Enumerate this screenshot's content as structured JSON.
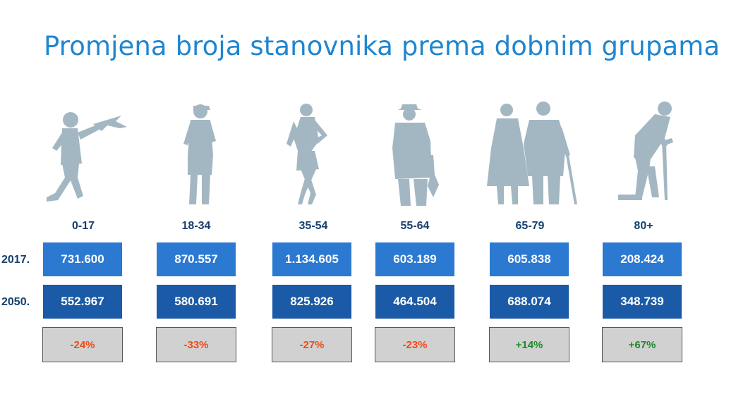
{
  "title": "Promjena broja stanovnika prema dobnim grupama",
  "row_labels": {
    "y2017": "2017.",
    "y2050": "2050."
  },
  "colors": {
    "title": "#1f86d0",
    "box_2017": "#2b79d1",
    "box_2050": "#1a5aa6",
    "change_bg": "#d1d1d1",
    "negative": "#f24a1a",
    "positive": "#1f8a2e",
    "silhouette": "#a3b7c3"
  },
  "groups": [
    {
      "label": "0-17",
      "icon": "child-with-plane-icon",
      "y2017": "731.600",
      "y2050": "552.967",
      "change": "-24%",
      "direction": "negative"
    },
    {
      "label": "18-34",
      "icon": "young-man-icon",
      "y2017": "870.557",
      "y2050": "580.691",
      "change": "-33%",
      "direction": "negative"
    },
    {
      "label": "35-54",
      "icon": "woman-icon",
      "y2017": "1.134.605",
      "y2050": "825.926",
      "change": "-27%",
      "direction": "negative"
    },
    {
      "label": "55-64",
      "icon": "man-with-umbrella-icon",
      "y2017": "603.189",
      "y2050": "464.504",
      "change": "-23%",
      "direction": "negative"
    },
    {
      "label": "65-79",
      "icon": "elderly-couple-icon",
      "y2017": "605.838",
      "y2050": "688.074",
      "change": "+14%",
      "direction": "positive"
    },
    {
      "label": "80+",
      "icon": "elderly-with-cane-icon",
      "y2017": "208.424",
      "y2050": "348.739",
      "change": "+67%",
      "direction": "positive"
    }
  ],
  "chart_data": {
    "type": "table",
    "title": "Promjena broja stanovnika prema dobnim grupama",
    "categories": [
      "0-17",
      "18-34",
      "35-54",
      "55-64",
      "65-79",
      "80+"
    ],
    "series": [
      {
        "name": "2017.",
        "values": [
          731600,
          870557,
          1134605,
          603189,
          605838,
          208424
        ]
      },
      {
        "name": "2050.",
        "values": [
          552967,
          580691,
          825926,
          464504,
          688074,
          348739
        ]
      }
    ],
    "change_percent": [
      -24,
      -33,
      -27,
      -23,
      14,
      67
    ]
  }
}
